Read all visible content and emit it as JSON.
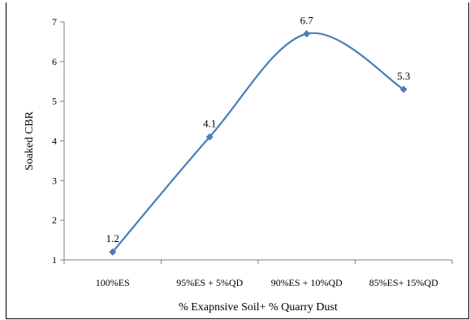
{
  "chart_data": {
    "type": "line",
    "categories": [
      "100%ES",
      "95%ES + 5%QD",
      "90%ES + 10%QD",
      "85%ES+ 15%QD"
    ],
    "series": [
      {
        "values": [
          1.2,
          4.1,
          6.7,
          5.3
        ],
        "color": "#4a7ebb"
      }
    ],
    "data_labels": [
      "1.2",
      "4.1",
      "6.7",
      "5.3"
    ],
    "xlabel": "% Exapnsive Soil+ % Quarry Dust",
    "ylabel": "Soaked CBR",
    "ylim": [
      1,
      7
    ],
    "yticks": [
      "1",
      "2",
      "3",
      "4",
      "5",
      "6",
      "7"
    ],
    "grid": false,
    "legend": "none",
    "smooth": true,
    "marker": "diamond"
  }
}
